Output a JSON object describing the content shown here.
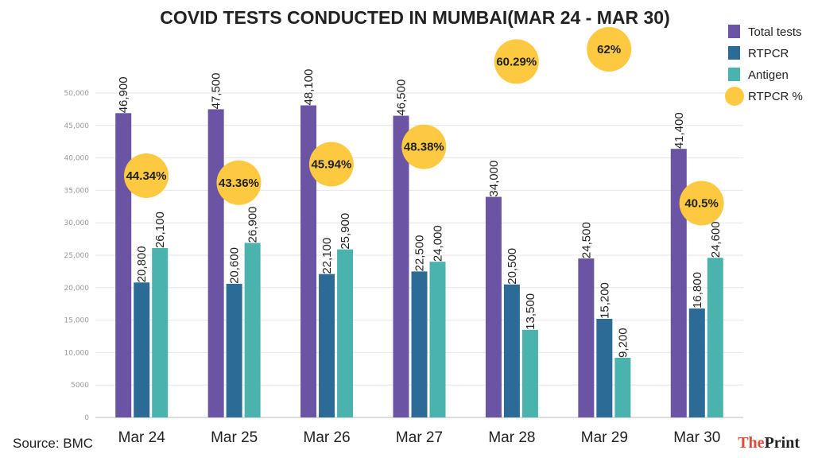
{
  "chart_data": {
    "type": "bar",
    "title": "COVID TESTS CONDUCTED IN MUMBAI(MAR 24 - MAR 30)",
    "categories": [
      "Mar 24",
      "Mar 25",
      "Mar 26",
      "Mar 27",
      "Mar 28",
      "Mar 29",
      "Mar 30"
    ],
    "series": [
      {
        "name": "Total tests",
        "color": "#6b54a3",
        "values": [
          46900,
          47500,
          48100,
          46500,
          34000,
          24500,
          41400
        ],
        "labels": [
          "46,900",
          "47,500",
          "48,100",
          "46,500",
          "34,000",
          "24,500",
          "41,400"
        ]
      },
      {
        "name": "RTPCR",
        "color": "#2d6b97",
        "values": [
          20800,
          20600,
          22100,
          22500,
          20500,
          15200,
          16800
        ],
        "labels": [
          "20,800",
          "20,600",
          "22,100",
          "22,500",
          "20,500",
          "15,200",
          "16,800"
        ]
      },
      {
        "name": "Antigen",
        "color": "#4bb3ad",
        "values": [
          26100,
          26900,
          25900,
          24000,
          13500,
          9200,
          24600
        ],
        "labels": [
          "26,100",
          "26,900",
          "25,900",
          "24,000",
          "13,500",
          "9,200",
          "24,600"
        ]
      }
    ],
    "rtpcr_pct": {
      "name": "RTPCR %",
      "color": "#fcc940",
      "values": [
        44.34,
        43.36,
        45.94,
        48.38,
        60.29,
        62,
        40.5
      ],
      "labels": [
        "44.34%",
        "43.36%",
        "45.94%",
        "48.38%",
        "60.29%",
        "62%",
        "40.5%"
      ]
    },
    "ylim": [
      0,
      50000
    ],
    "yticks": [
      0,
      5000,
      10000,
      15000,
      20000,
      25000,
      30000,
      35000,
      40000,
      45000,
      50000
    ],
    "ytick_labels": [
      "0",
      "5000",
      "10,000",
      "15,000",
      "20,000",
      "25,000",
      "30,000",
      "35,000",
      "40,000",
      "45,000",
      "50,000"
    ],
    "grid": true,
    "legend_position": "top-right",
    "source": "Source: BMC"
  },
  "brand": {
    "part1": "The",
    "part2": "Print"
  }
}
